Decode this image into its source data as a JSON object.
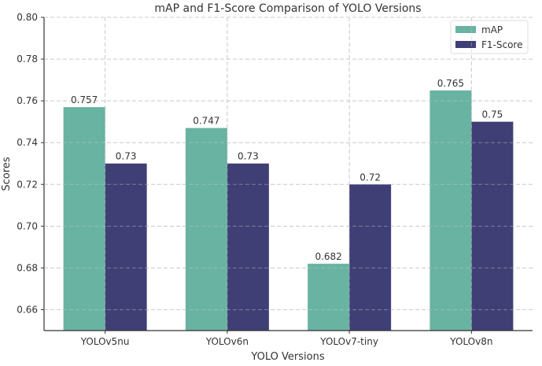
{
  "chart_data": {
    "type": "bar",
    "title": "mAP and F1-Score Comparison of YOLO Versions",
    "xlabel": "YOLO Versions",
    "ylabel": "Scores",
    "categories": [
      "YOLOv5nu",
      "YOLOv6n",
      "YOLOv7-tiny",
      "YOLOv8n"
    ],
    "series": [
      {
        "name": "mAP",
        "values": [
          0.757,
          0.747,
          0.682,
          0.765
        ],
        "labels": [
          "0.757",
          "0.747",
          "0.682",
          "0.765"
        ],
        "color": "#69b3a2"
      },
      {
        "name": "F1-Score",
        "values": [
          0.73,
          0.73,
          0.72,
          0.75
        ],
        "labels": [
          "0.73",
          "0.73",
          "0.72",
          "0.75"
        ],
        "color": "#3f3f76"
      }
    ],
    "ylim": [
      0.65,
      0.8
    ],
    "yticks": [
      0.66,
      0.68,
      0.7,
      0.72,
      0.74,
      0.76,
      0.78,
      0.8
    ],
    "ytick_labels": [
      "0.66",
      "0.68",
      "0.70",
      "0.72",
      "0.74",
      "0.76",
      "0.78",
      "0.80"
    ],
    "grid": true,
    "legend_position": "top-right"
  }
}
